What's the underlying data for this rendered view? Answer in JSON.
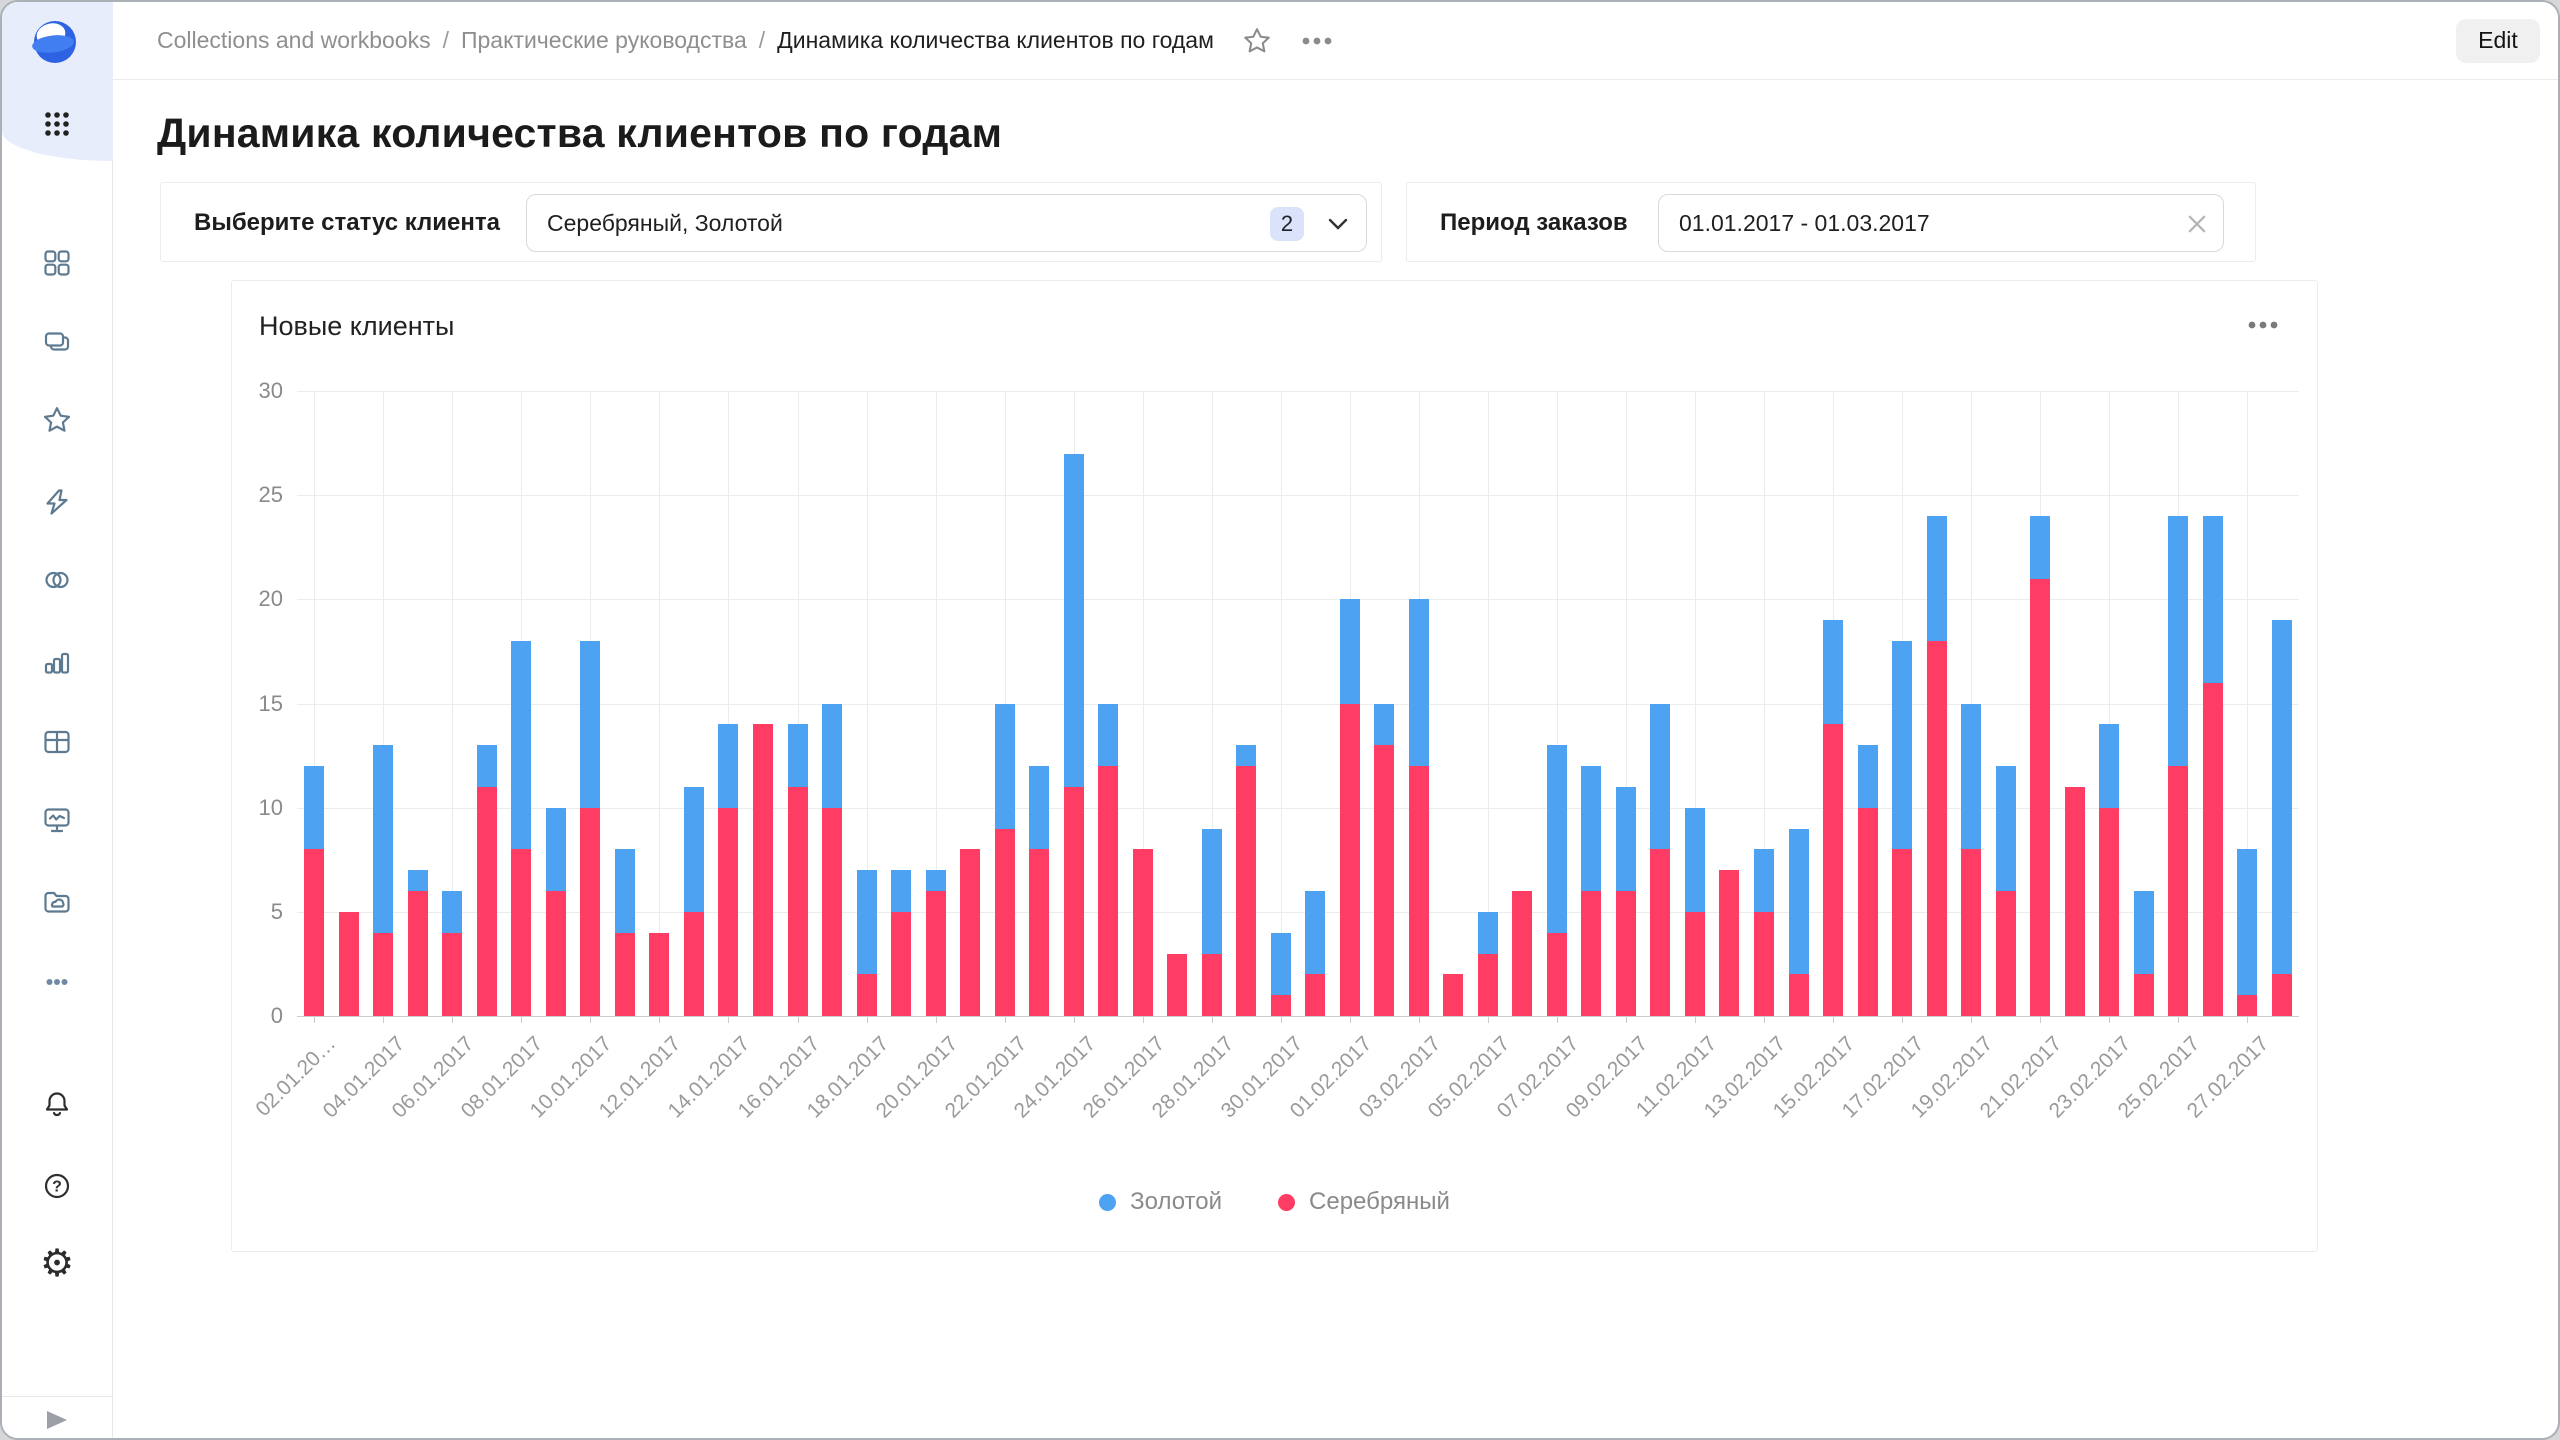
{
  "header": {
    "breadcrumbs": [
      "Collections and workbooks",
      "Практические руководства",
      "Динамика количества клиентов по годам"
    ],
    "separator": "/",
    "edit_label": "Edit"
  },
  "sidebar": {
    "icons": [
      "datalens-logo",
      "apps-grid-icon",
      "workbooks-grid-icon",
      "collections-icon",
      "favorites-star-icon",
      "quick-actions-lightning-icon",
      "connections-icon",
      "charts-icon",
      "datasets-table-icon",
      "dashboards-monitor-icon",
      "storage-folder-icon",
      "more-dots-icon",
      "notifications-bell-icon",
      "help-icon",
      "settings-gear-icon",
      "expand-sidebar-icon"
    ]
  },
  "page": {
    "title": "Динамика количества клиентов по годам"
  },
  "filters": {
    "status": {
      "label": "Выберите статус клиента",
      "value": "Серебряный, Золотой",
      "count": "2"
    },
    "period": {
      "label": "Период заказов",
      "value": "01.01.2017 - 01.03.2017"
    }
  },
  "chart_card": {
    "title": "Новые клиенты"
  },
  "chart_data": {
    "type": "bar",
    "stacked": true,
    "title": "Новые клиенты",
    "xlabel": "",
    "ylabel": "",
    "ylim": [
      0,
      30
    ],
    "yticks": [
      0,
      5,
      10,
      15,
      20,
      25,
      30
    ],
    "grid": true,
    "legend_position": "bottom",
    "categories": [
      "02.01.2017",
      "03.01.2017",
      "04.01.2017",
      "05.01.2017",
      "06.01.2017",
      "07.01.2017",
      "08.01.2017",
      "09.01.2017",
      "10.01.2017",
      "11.01.2017",
      "12.01.2017",
      "13.01.2017",
      "14.01.2017",
      "15.01.2017",
      "16.01.2017",
      "17.01.2017",
      "18.01.2017",
      "19.01.2017",
      "20.01.2017",
      "21.01.2017",
      "22.01.2017",
      "23.01.2017",
      "24.01.2017",
      "25.01.2017",
      "26.01.2017",
      "27.01.2017",
      "28.01.2017",
      "29.01.2017",
      "30.01.2017",
      "31.01.2017",
      "01.02.2017",
      "02.02.2017",
      "03.02.2017",
      "04.02.2017",
      "05.02.2017",
      "06.02.2017",
      "07.02.2017",
      "08.02.2017",
      "09.02.2017",
      "10.02.2017",
      "11.02.2017",
      "12.02.2017",
      "13.02.2017",
      "14.02.2017",
      "15.02.2017",
      "16.02.2017",
      "17.02.2017",
      "18.02.2017",
      "19.02.2017",
      "20.02.2017",
      "21.02.2017",
      "22.02.2017",
      "23.02.2017",
      "24.02.2017",
      "25.02.2017",
      "26.02.2017",
      "27.02.2017",
      "28.02.2017"
    ],
    "x_tick_labels": [
      "02.01.20…",
      "04.01.2017",
      "06.01.2017",
      "08.01.2017",
      "10.01.2017",
      "12.01.2017",
      "14.01.2017",
      "16.01.2017",
      "18.01.2017",
      "20.01.2017",
      "22.01.2017",
      "24.01.2017",
      "26.01.2017",
      "28.01.2017",
      "30.01.2017",
      "01.02.2017",
      "03.02.2017",
      "05.02.2017",
      "07.02.2017",
      "09.02.2017",
      "11.02.2017",
      "13.02.2017",
      "15.02.2017",
      "17.02.2017",
      "19.02.2017",
      "21.02.2017",
      "23.02.2017",
      "25.02.2017",
      "27.02.2017"
    ],
    "series": [
      {
        "name": "Золотой",
        "color": "#4DA2F2",
        "values": [
          4,
          0,
          9,
          1,
          2,
          2,
          10,
          4,
          8,
          4,
          0,
          6,
          4,
          0,
          3,
          5,
          5,
          2,
          1,
          0,
          6,
          4,
          16,
          3,
          0,
          0,
          6,
          1,
          3,
          4,
          5,
          2,
          8,
          0,
          2,
          0,
          9,
          6,
          5,
          7,
          5,
          0,
          3,
          7,
          5,
          3,
          10,
          6,
          7,
          6,
          3,
          0,
          4,
          4,
          12,
          8,
          7,
          17
        ]
      },
      {
        "name": "Серебряный",
        "color": "#FF3D64",
        "values": [
          8,
          5,
          4,
          6,
          4,
          11,
          8,
          6,
          10,
          4,
          4,
          5,
          10,
          14,
          11,
          10,
          2,
          5,
          6,
          8,
          9,
          8,
          11,
          12,
          8,
          3,
          3,
          12,
          1,
          2,
          15,
          13,
          12,
          2,
          3,
          6,
          4,
          6,
          6,
          8,
          5,
          7,
          5,
          2,
          14,
          10,
          8,
          18,
          8,
          6,
          21,
          11,
          10,
          2,
          12,
          16,
          1,
          2
        ]
      }
    ]
  }
}
